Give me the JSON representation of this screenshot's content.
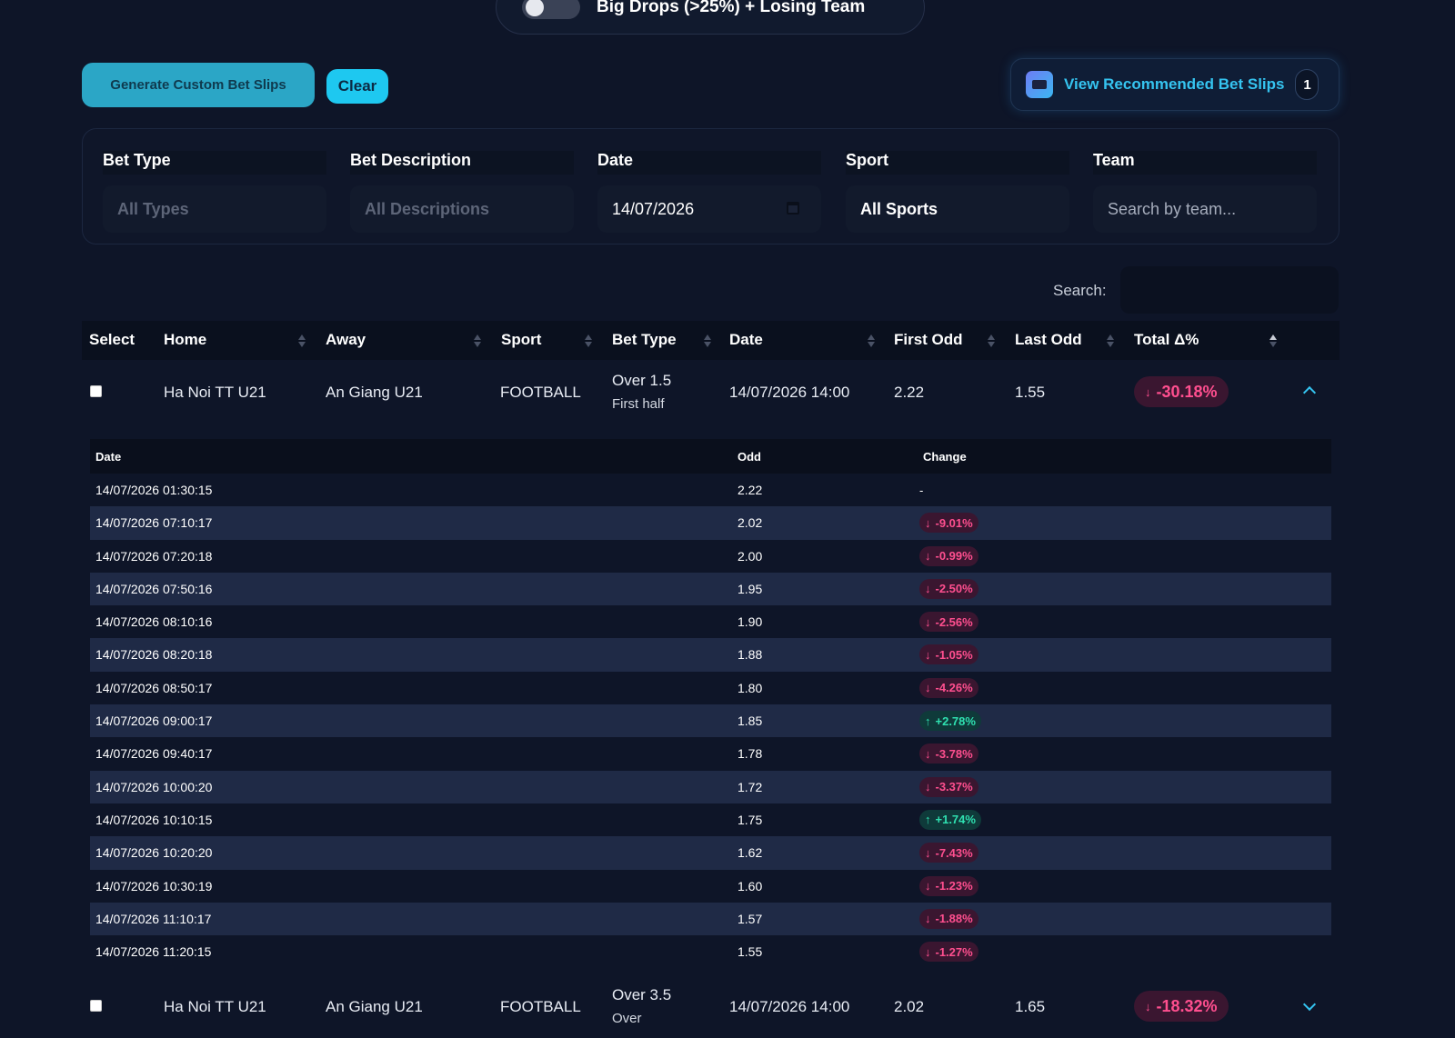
{
  "top_filter": {
    "label": "Big Drops (>25%) + Losing Team"
  },
  "actions": {
    "generate_label": "Generate Custom Bet Slips",
    "clear_label": "Clear",
    "recommended_label": "View Recommended Bet Slips",
    "recommended_count": "1"
  },
  "filters": {
    "bet_type": {
      "label": "Bet Type",
      "placeholder": "All Types"
    },
    "bet_description": {
      "label": "Bet Description",
      "placeholder": "All Descriptions"
    },
    "date": {
      "label": "Date",
      "value": "14/07/2026"
    },
    "sport": {
      "label": "Sport",
      "value": "All Sports"
    },
    "team": {
      "label": "Team",
      "placeholder": "Search by team..."
    }
  },
  "search": {
    "label": "Search:"
  },
  "table": {
    "headers": [
      "Select",
      "Home",
      "Away",
      "Sport",
      "Bet Type",
      "Date",
      "First Odd",
      "Last Odd",
      "Total Δ%"
    ],
    "rows": [
      {
        "home": "Ha Noi TT U21",
        "away": "An Giang U21",
        "sport": "FOOTBALL",
        "bet_type": "Over 1.5",
        "bet_sub": "First half",
        "date": "14/07/2026 14:00",
        "first_odd": "2.22",
        "last_odd": "1.55",
        "total": "-30.18%",
        "total_arrow": "↓",
        "expanded": true
      },
      {
        "home": "Ha Noi TT U21",
        "away": "An Giang U21",
        "sport": "FOOTBALL",
        "bet_type": "Over 3.5",
        "bet_sub": "Over",
        "date": "14/07/2026 14:00",
        "first_odd": "2.02",
        "last_odd": "1.65",
        "total": "-18.32%",
        "total_arrow": "↓",
        "expanded": false
      }
    ]
  },
  "history": {
    "headers": {
      "date": "Date",
      "odd": "Odd",
      "change": "Change"
    },
    "rows": [
      {
        "date": "14/07/2026 01:30:15",
        "odd": "2.22",
        "change": "-",
        "dir": "none"
      },
      {
        "date": "14/07/2026 07:10:17",
        "odd": "2.02",
        "change": "-9.01%",
        "dir": "down"
      },
      {
        "date": "14/07/2026 07:20:18",
        "odd": "2.00",
        "change": "-0.99%",
        "dir": "down"
      },
      {
        "date": "14/07/2026 07:50:16",
        "odd": "1.95",
        "change": "-2.50%",
        "dir": "down"
      },
      {
        "date": "14/07/2026 08:10:16",
        "odd": "1.90",
        "change": "-2.56%",
        "dir": "down"
      },
      {
        "date": "14/07/2026 08:20:18",
        "odd": "1.88",
        "change": "-1.05%",
        "dir": "down"
      },
      {
        "date": "14/07/2026 08:50:17",
        "odd": "1.80",
        "change": "-4.26%",
        "dir": "down"
      },
      {
        "date": "14/07/2026 09:00:17",
        "odd": "1.85",
        "change": "+2.78%",
        "dir": "up"
      },
      {
        "date": "14/07/2026 09:40:17",
        "odd": "1.78",
        "change": "-3.78%",
        "dir": "down"
      },
      {
        "date": "14/07/2026 10:00:20",
        "odd": "1.72",
        "change": "-3.37%",
        "dir": "down"
      },
      {
        "date": "14/07/2026 10:10:15",
        "odd": "1.75",
        "change": "+1.74%",
        "dir": "up"
      },
      {
        "date": "14/07/2026 10:20:20",
        "odd": "1.62",
        "change": "-7.43%",
        "dir": "down"
      },
      {
        "date": "14/07/2026 10:30:19",
        "odd": "1.60",
        "change": "-1.23%",
        "dir": "down"
      },
      {
        "date": "14/07/2026 11:10:17",
        "odd": "1.57",
        "change": "-1.88%",
        "dir": "down"
      },
      {
        "date": "14/07/2026 11:20:15",
        "odd": "1.55",
        "change": "-1.27%",
        "dir": "down"
      }
    ]
  },
  "colors": {
    "background": "#0e1528",
    "accent": "#1ec8f0",
    "drop": "#ff4f8f",
    "rise": "#2fe0b0"
  },
  "icons": {
    "up_arrow": "↑",
    "down_arrow": "↓"
  }
}
